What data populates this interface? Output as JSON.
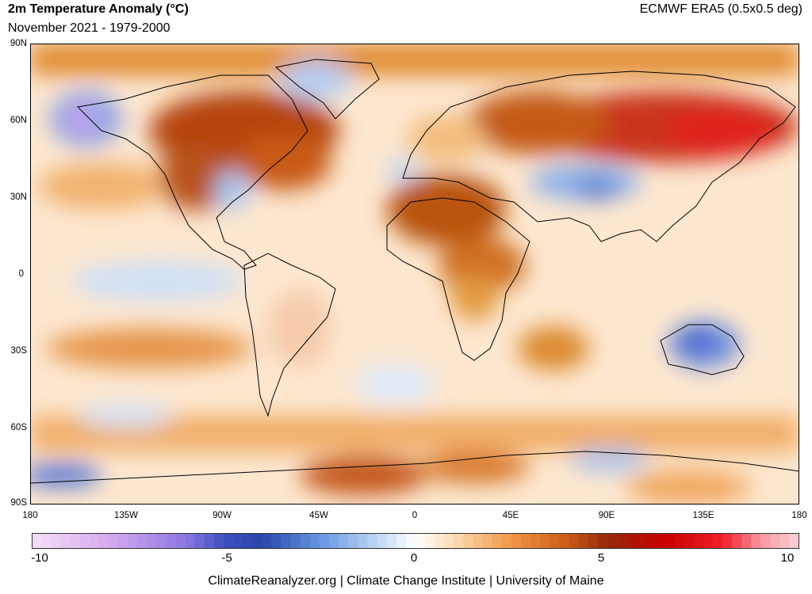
{
  "header": {
    "title": "2m Temperature Anomaly (°C)",
    "subtitle": "November 2021 - 1979-2000",
    "source": "ECMWF ERA5 (0.5x0.5 deg)"
  },
  "axes": {
    "lat_labels": [
      "90N",
      "60N",
      "30N",
      "0",
      "30S",
      "60S",
      "90S"
    ],
    "lon_labels": [
      "180",
      "135W",
      "90W",
      "45W",
      "0",
      "45E",
      "90E",
      "135E",
      "180"
    ]
  },
  "colorbar": {
    "labels": [
      "-10",
      "-5",
      "0",
      "5",
      "10"
    ],
    "min": -10,
    "max": 10
  },
  "footer": {
    "credit": "ClimateReanalyzer.org | Climate Change Institute | University of Maine"
  }
}
